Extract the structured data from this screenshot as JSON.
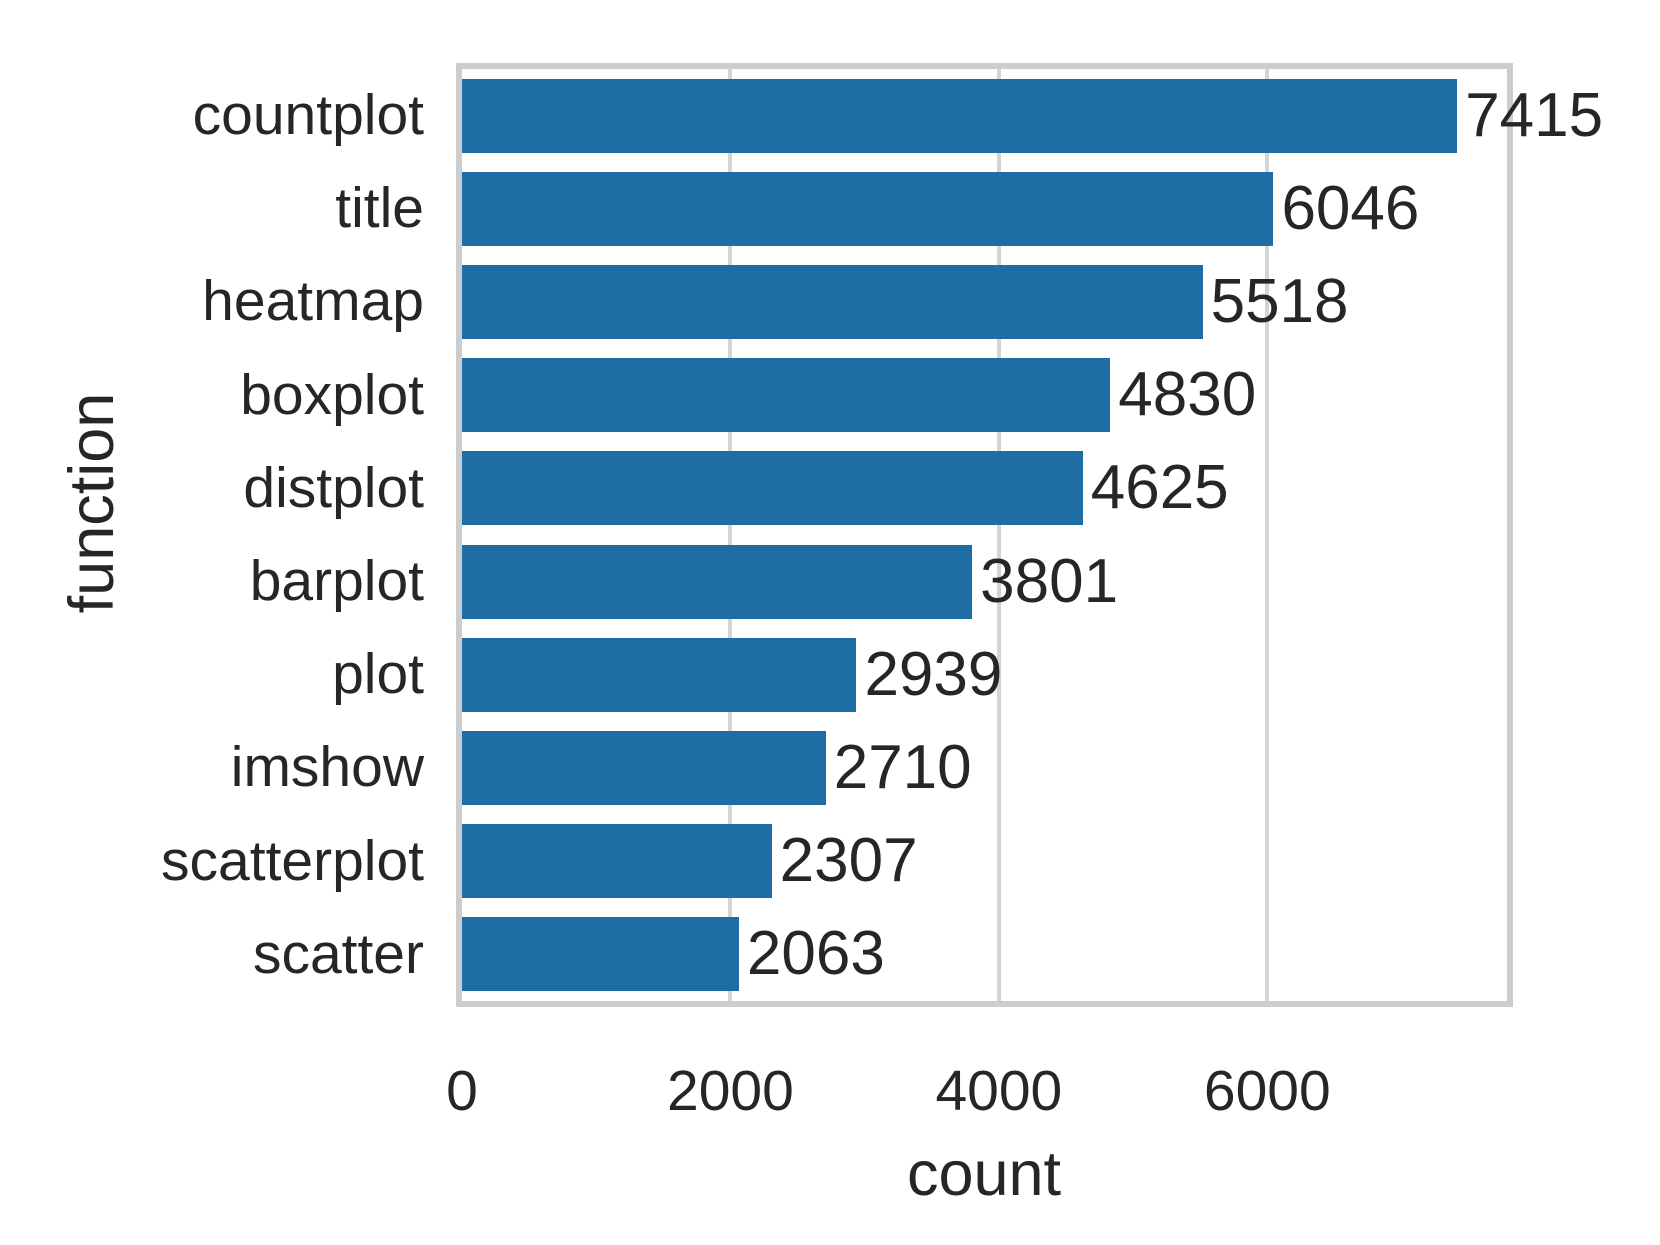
{
  "chart_data": {
    "type": "bar",
    "orientation": "horizontal",
    "title": "",
    "xlabel": "count",
    "ylabel": "function",
    "categories": [
      "countplot",
      "title",
      "heatmap",
      "boxplot",
      "distplot",
      "barplot",
      "plot",
      "imshow",
      "scatterplot",
      "scatter"
    ],
    "values": [
      7415,
      6046,
      5518,
      4830,
      4625,
      3801,
      2939,
      2710,
      2307,
      2063
    ],
    "value_labels": [
      "7415",
      "6046",
      "5518",
      "4830",
      "4625",
      "3801",
      "2939",
      "2710",
      "2307",
      "2063"
    ],
    "xticks": [
      0,
      2000,
      4000,
      6000
    ],
    "xtick_labels": [
      "0",
      "2000",
      "4000",
      "6000"
    ],
    "xlim": [
      0,
      7786
    ],
    "grid": true,
    "legend": null,
    "colors": {
      "bar": "#1e6ea5",
      "gridline": "#d4d4d4",
      "spine": "#cdcdcd",
      "text": "#262626",
      "background": "#ffffff"
    }
  }
}
